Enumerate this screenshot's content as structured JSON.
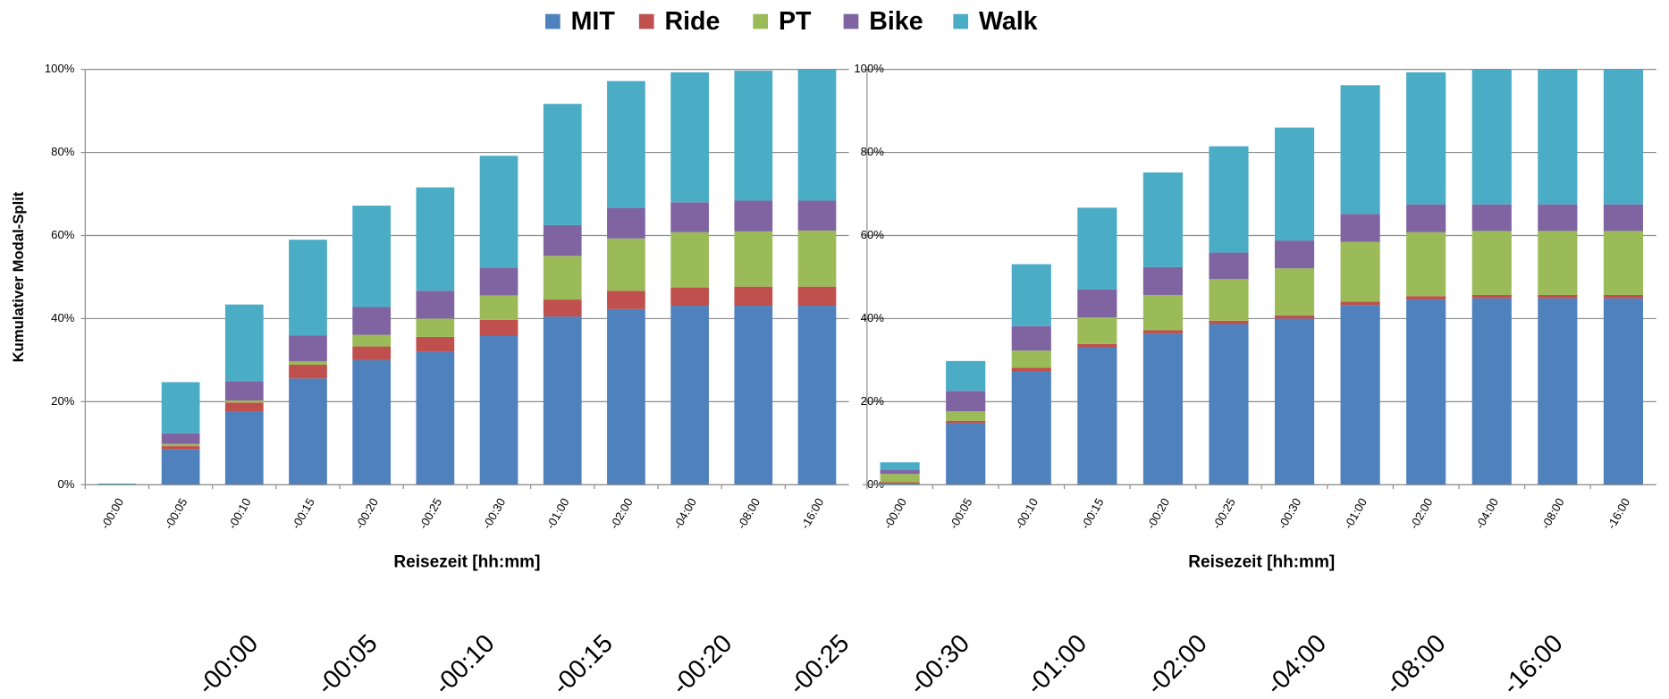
{
  "chart_data": [
    {
      "type": "bar",
      "stacked": true,
      "grid": true,
      "legend": "top",
      "ylabel": "Kumulativer Modal-Split",
      "xlabel": "Reisezeit [hh:mm]",
      "categories": [
        "-00:00",
        "-00:05",
        "-00:10",
        "-00:15",
        "-00:20",
        "-00:25",
        "-00:30",
        "-01:00",
        "-02:00",
        "-04:00",
        "-08:00",
        "-16:00"
      ],
      "ylim": [
        0,
        100
      ],
      "yticks": [
        {
          "value": 0,
          "label": "0%"
        },
        {
          "value": 20,
          "label": "20%"
        },
        {
          "value": 40,
          "label": "40%"
        },
        {
          "value": 60,
          "label": "60%"
        },
        {
          "value": 80,
          "label": "80%"
        },
        {
          "value": 100,
          "label": "100%"
        }
      ],
      "series": [
        {
          "name": "MIT",
          "color": "#4f81bd",
          "values": [
            0,
            8.5,
            17.7,
            25.6,
            30,
            32,
            35.9,
            40.5,
            42.3,
            43.1,
            43.1,
            43.1
          ]
        },
        {
          "name": "Ride",
          "color": "#c0504d",
          "values": [
            0,
            0.8,
            2.1,
            3.3,
            3.3,
            3.6,
            3.8,
            4.1,
            4.4,
            4.4,
            4.6,
            4.6
          ]
        },
        {
          "name": "PT",
          "color": "#9bbb59",
          "values": [
            0,
            0.5,
            0.5,
            0.8,
            2.8,
            4.4,
            5.9,
            10.5,
            12.6,
            13.3,
            13.3,
            13.5
          ]
        },
        {
          "name": "Bike",
          "color": "#8064a2",
          "values": [
            0,
            2.6,
            4.6,
            6.2,
            6.7,
            6.7,
            6.7,
            7.4,
            7.4,
            7.2,
            7.4,
            7.2
          ]
        },
        {
          "name": "Walk",
          "color": "#4bacc6",
          "values": [
            0.3,
            12.3,
            18.5,
            23.1,
            24.4,
            24.9,
            26.9,
            29.2,
            30.5,
            31.3,
            31.3,
            31.6
          ]
        }
      ]
    },
    {
      "type": "bar",
      "stacked": true,
      "grid": true,
      "xlabel": "Reisezeit [hh:mm]",
      "categories": [
        "-00:00",
        "-00:05",
        "-00:10",
        "-00:15",
        "-00:20",
        "-00:25",
        "-00:30",
        "-01:00",
        "-02:00",
        "-04:00",
        "-08:00",
        "-16:00"
      ],
      "ylim": [
        0,
        100
      ],
      "yticks": [
        {
          "value": 0,
          "label": "0%"
        },
        {
          "value": 20,
          "label": "20%"
        },
        {
          "value": 40,
          "label": "40%"
        },
        {
          "value": 60,
          "label": "60%"
        },
        {
          "value": 80,
          "label": "80%"
        },
        {
          "value": 100,
          "label": "100%"
        }
      ],
      "series": [
        {
          "color": "#4f81bd",
          "values": [
            0.3,
            14.9,
            27.4,
            33.1,
            36.4,
            38.7,
            40,
            43.3,
            44.6,
            44.9,
            44.9,
            44.9
          ]
        },
        {
          "color": "#c0504d",
          "values": [
            0.3,
            0.5,
            0.8,
            0.8,
            0.8,
            0.8,
            0.8,
            0.8,
            0.8,
            0.8,
            0.8,
            0.8
          ]
        },
        {
          "color": "#9bbb59",
          "values": [
            2,
            2.3,
            4.1,
            6.4,
            8.5,
            10,
            11.3,
            14.4,
            15.4,
            15.4,
            15.4,
            15.4
          ]
        },
        {
          "color": "#8064a2",
          "values": [
            1,
            4.9,
            5.9,
            6.7,
            6.7,
            6.4,
            6.7,
            6.7,
            6.7,
            6.4,
            6.4,
            6.4
          ]
        },
        {
          "color": "#4bacc6",
          "values": [
            1.8,
            7.2,
            14.9,
            19.7,
            22.8,
            25.6,
            27.2,
            31,
            31.8,
            32.5,
            32.5,
            32.5
          ]
        }
      ]
    }
  ],
  "footer_labels": [
    "-00:00",
    "-00:05",
    "-00:10",
    "-00:15",
    "-00:20",
    "-00:25",
    "-00:30",
    "-01:00",
    "-02:00",
    "-04:00",
    "-08:00",
    "-16:00"
  ]
}
